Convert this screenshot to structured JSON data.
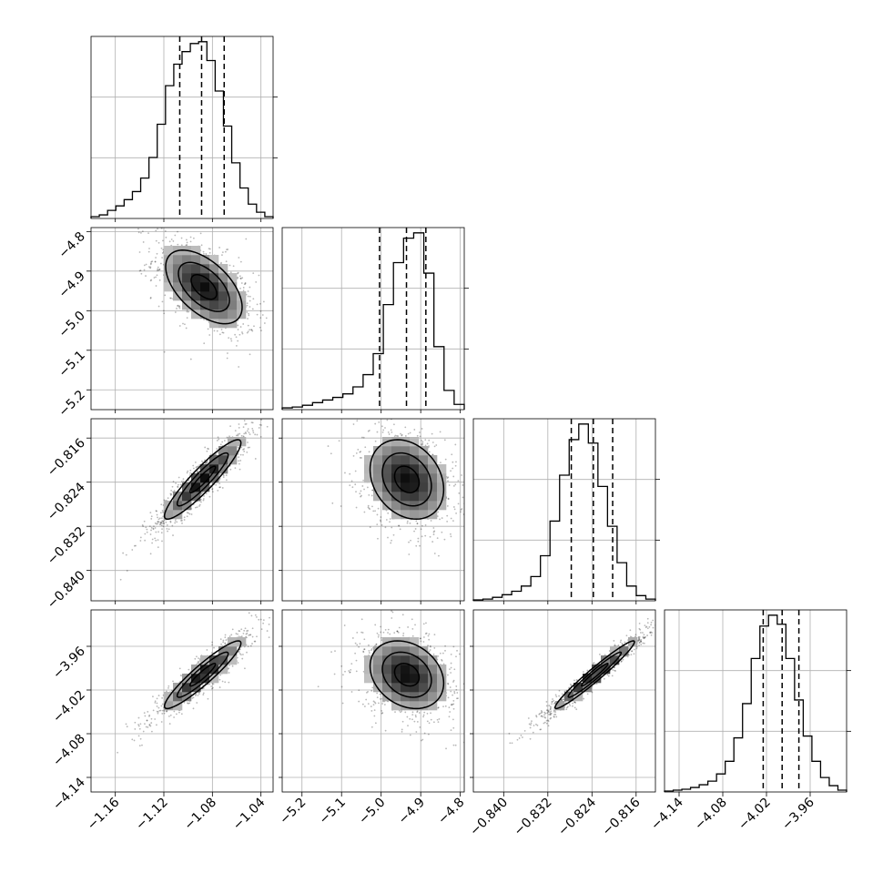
{
  "chart_data": {
    "type": "corner",
    "variables": [
      {
        "index": 0,
        "range": [
          -1.18,
          -1.03
        ],
        "ticks": [
          -1.16,
          -1.12,
          -1.08,
          -1.04
        ],
        "tick_labels": [
          "−1.16",
          "−1.12",
          "−1.08",
          "−1.04"
        ]
      },
      {
        "index": 1,
        "range": [
          -5.25,
          -4.79
        ],
        "ticks": [
          -5.2,
          -5.1,
          -5.0,
          -4.9,
          -4.8
        ],
        "tick_labels": [
          "−5.2",
          "−5.1",
          "−5.0",
          "−4.9",
          "−4.8"
        ]
      },
      {
        "index": 2,
        "range": [
          -0.8455,
          -0.8125
        ],
        "ticks": [
          -0.84,
          -0.832,
          -0.824,
          -0.816
        ],
        "tick_labels": [
          "−0.840",
          "−0.832",
          "−0.824",
          "−0.816"
        ]
      },
      {
        "index": 3,
        "range": [
          -4.16,
          -3.91
        ],
        "ticks": [
          -4.14,
          -4.08,
          -4.02,
          -3.96
        ],
        "tick_labels": [
          "−4.14",
          "−4.08",
          "−4.02",
          "−3.96"
        ]
      }
    ],
    "histograms": [
      {
        "index": 0,
        "bin_counts": [
          2,
          4,
          9,
          14,
          21,
          30,
          45,
          68,
          105,
          148,
          172,
          186,
          195,
          197,
          176,
          142,
          103,
          62,
          34,
          16,
          7,
          2
        ],
        "quantiles": [
          -1.1069,
          -1.0889,
          -1.0703
        ]
      },
      {
        "index": 1,
        "bin_counts": [
          2,
          3,
          5,
          8,
          11,
          14,
          18,
          26,
          40,
          64,
          120,
          168,
          196,
          202,
          156,
          72,
          22,
          6
        ],
        "quantiles": [
          -5.004,
          -4.936,
          -4.887
        ]
      },
      {
        "index": 2,
        "bin_counts": [
          1,
          2,
          4,
          7,
          11,
          17,
          28,
          52,
          92,
          145,
          186,
          204,
          182,
          132,
          86,
          44,
          17,
          6,
          2
        ],
        "quantiles": [
          -0.82775,
          -0.82375,
          -0.82025
        ]
      },
      {
        "index": 3,
        "bin_counts": [
          1,
          2,
          3,
          5,
          8,
          12,
          20,
          34,
          60,
          98,
          148,
          184,
          196,
          186,
          148,
          102,
          62,
          34,
          16,
          7,
          2
        ],
        "quantiles": [
          -4.0245,
          -3.9985,
          -3.9755
        ]
      }
    ],
    "pairs": [
      {
        "x": 0,
        "y": 1,
        "mean": [
          -1.087,
          -4.94
        ],
        "std": [
          0.021,
          0.062
        ],
        "corr": -0.55
      },
      {
        "x": 0,
        "y": 2,
        "mean": [
          -1.088,
          -0.8235
        ],
        "std": [
          0.021,
          0.0048
        ],
        "corr": 0.92
      },
      {
        "x": 1,
        "y": 2,
        "mean": [
          -4.935,
          -0.8235
        ],
        "std": [
          0.062,
          0.0048
        ],
        "corr": -0.25
      },
      {
        "x": 0,
        "y": 3,
        "mean": [
          -1.088,
          -3.999
        ],
        "std": [
          0.021,
          0.031
        ],
        "corr": 0.93
      },
      {
        "x": 1,
        "y": 3,
        "mean": [
          -4.935,
          -3.999
        ],
        "std": [
          0.062,
          0.031
        ],
        "corr": -0.25
      },
      {
        "x": 2,
        "y": 3,
        "mean": [
          -0.8235,
          -3.999
        ],
        "std": [
          0.0048,
          0.031
        ],
        "corr": 0.97
      }
    ],
    "contour_levels_sigma": [
      0.5,
      1.0,
      1.5
    ],
    "grid": true,
    "colors": {
      "line": "#000000",
      "grid": "#b0b0b0",
      "scatter": "#000000",
      "background": "#ffffff"
    }
  }
}
